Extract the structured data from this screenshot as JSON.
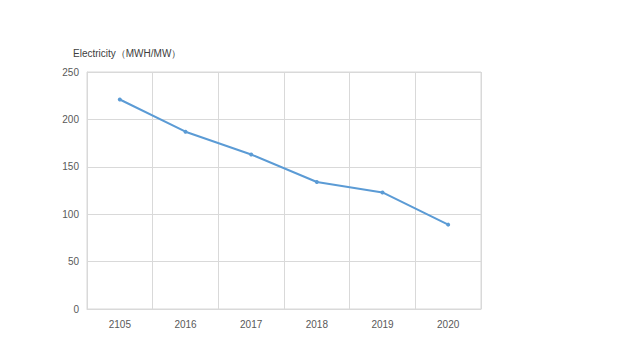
{
  "chart_data": {
    "type": "line",
    "ylabel": "Electricity（MWH/MW）",
    "categories": [
      "2105",
      "2016",
      "2017",
      "2018",
      "2019",
      "2020"
    ],
    "values": [
      221,
      187,
      163,
      134,
      123,
      89
    ],
    "color": "#5b9bd5",
    "marker": "circle",
    "ylim": [
      0,
      250
    ],
    "yticks": [
      0,
      50,
      100,
      150,
      200,
      250
    ],
    "grid": true
  }
}
